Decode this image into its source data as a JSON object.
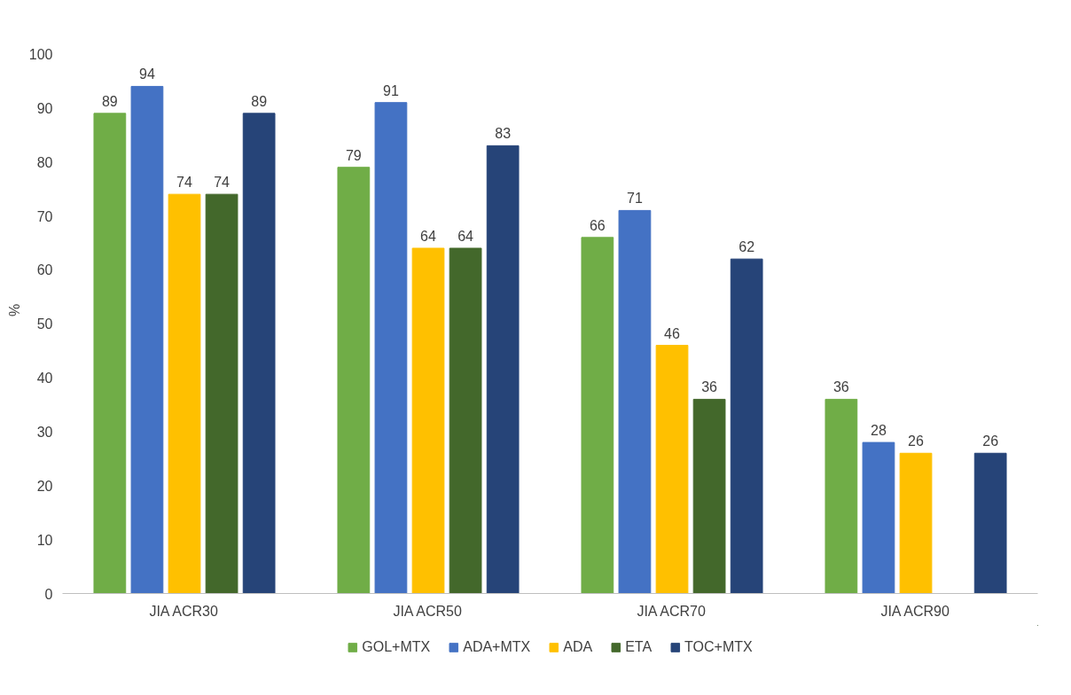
{
  "chart_data": {
    "type": "bar",
    "ylabel": "%",
    "categories": [
      "JIA ACR30",
      "JIA ACR50",
      "JIA ACR70",
      "JIA ACR90"
    ],
    "series": [
      {
        "name": "GOL+MTX",
        "color": "#70ad47",
        "values": [
          89,
          79,
          66,
          36
        ]
      },
      {
        "name": "ADA+MTX",
        "color": "#4472c4",
        "values": [
          94,
          91,
          71,
          28
        ]
      },
      {
        "name": "ADA",
        "color": "#ffc000",
        "values": [
          74,
          64,
          46,
          26
        ]
      },
      {
        "name": "ETA",
        "color": "#43682b",
        "values": [
          74,
          64,
          36,
          null
        ]
      },
      {
        "name": "TOC+MTX",
        "color": "#264478",
        "values": [
          89,
          83,
          62,
          26
        ]
      }
    ],
    "ylim": [
      0,
      100
    ],
    "yticks": [
      0,
      10,
      20,
      30,
      40,
      50,
      60,
      70,
      80,
      90,
      100
    ],
    "grid": false,
    "legend": "bottom",
    "data_labels": true
  }
}
